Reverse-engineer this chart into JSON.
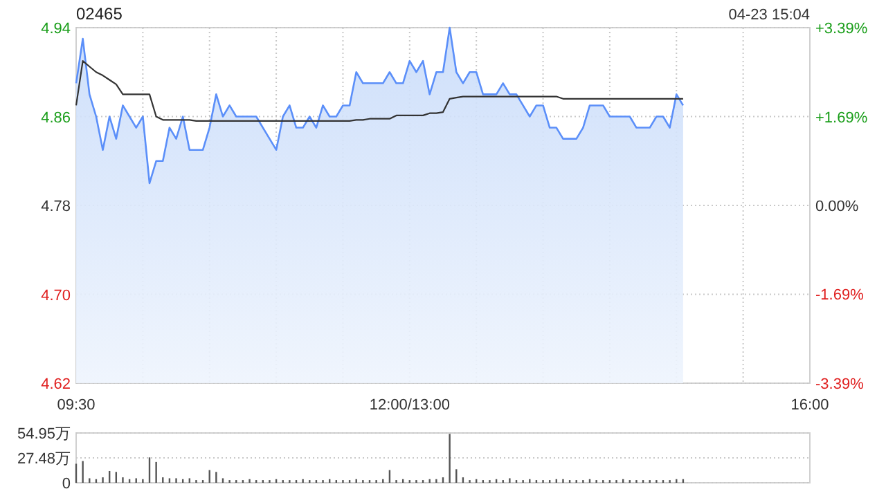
{
  "chart_data": [
    {
      "type": "area",
      "title": "02465",
      "annotations": [
        "04-23 15:04"
      ],
      "grid": true,
      "categories": [
        "09:30",
        null,
        null,
        null,
        null,
        null,
        null,
        null,
        null,
        null,
        null,
        null,
        null,
        null,
        null,
        null,
        null,
        null,
        null,
        null,
        null,
        null,
        null,
        null,
        null,
        null,
        null,
        null,
        null,
        null,
        null,
        null,
        null,
        null,
        null,
        null,
        null,
        null,
        null,
        null,
        null,
        null,
        null,
        null,
        null,
        null,
        null,
        null,
        null,
        null,
        "12:00/13:00",
        null,
        null,
        null,
        null,
        null,
        null,
        null,
        null,
        null,
        null,
        null,
        null,
        null,
        null,
        null,
        null,
        null,
        null,
        null,
        null,
        null,
        null,
        null,
        null,
        null,
        null,
        null,
        null,
        null,
        null,
        null,
        null,
        null,
        null,
        null,
        null,
        null,
        null,
        null,
        null,
        null,
        null,
        null,
        null,
        null,
        null,
        null,
        null,
        null,
        null,
        null,
        null,
        null,
        null,
        null,
        null,
        null,
        null,
        null,
        "16:00"
      ],
      "ylim": [
        4.62,
        4.94
      ],
      "yticks": [
        4.62,
        {
          "value": 4.7,
          "label": "4.70"
        },
        4.78,
        4.86,
        4.94
      ],
      "y2lim": [
        -3.39,
        3.39
      ],
      "y2ticks": [
        {
          "value": -3.39,
          "label": "-3.39%"
        },
        {
          "value": -1.69,
          "label": "-1.69%"
        },
        {
          "value": 0,
          "label": "0.00%"
        },
        {
          "value": 1.69,
          "label": "+1.69%"
        },
        {
          "value": 3.39,
          "label": "+3.39%"
        }
      ],
      "series": [
        {
          "color": "#5b8ff9",
          "values": [
            4.89,
            4.93,
            4.88,
            4.86,
            4.83,
            4.86,
            4.84,
            4.87,
            4.86,
            4.85,
            4.86,
            4.8,
            4.82,
            4.82,
            4.85,
            4.84,
            4.86,
            4.83,
            4.83,
            4.83,
            4.85,
            4.88,
            4.86,
            4.87,
            4.86,
            4.86,
            4.86,
            4.86,
            4.85,
            4.84,
            4.83,
            4.86,
            4.87,
            4.85,
            4.85,
            4.86,
            4.85,
            4.87,
            4.86,
            4.86,
            4.87,
            4.87,
            4.9,
            4.89,
            4.89,
            4.89,
            4.89,
            4.9,
            4.89,
            4.89,
            4.91,
            4.9,
            4.91,
            4.88,
            4.9,
            4.9,
            4.94,
            4.9,
            4.89,
            4.9,
            4.9,
            4.88,
            4.88,
            4.88,
            4.89,
            4.88,
            4.88,
            4.87,
            4.86,
            4.87,
            4.87,
            4.85,
            4.85,
            4.84,
            4.84,
            4.84,
            4.85,
            4.87,
            4.87,
            4.87,
            4.86,
            4.86,
            4.86,
            4.86,
            4.85,
            4.85,
            4.85,
            4.86,
            4.86,
            4.85,
            4.88,
            4.87,
            null,
            null,
            null,
            null,
            null,
            null,
            null,
            null,
            null,
            null,
            null,
            null,
            null,
            null,
            null,
            null,
            null,
            null,
            null
          ]
        },
        {
          "type": "line",
          "color": "#333333",
          "values": [
            4.87,
            4.91,
            4.905,
            4.9,
            4.897,
            4.893,
            4.889,
            4.88,
            4.88,
            4.88,
            4.88,
            4.88,
            4.86,
            4.857,
            4.857,
            4.857,
            4.857,
            4.857,
            4.856,
            4.856,
            4.856,
            4.856,
            4.856,
            4.856,
            4.856,
            4.856,
            4.856,
            4.856,
            4.856,
            4.856,
            4.856,
            4.856,
            4.856,
            4.856,
            4.856,
            4.856,
            4.856,
            4.856,
            4.856,
            4.856,
            4.856,
            4.856,
            4.857,
            4.857,
            4.858,
            4.858,
            4.858,
            4.858,
            4.861,
            4.861,
            4.861,
            4.861,
            4.861,
            4.863,
            4.863,
            4.864,
            4.876,
            4.877,
            4.878,
            4.878,
            4.878,
            4.878,
            4.878,
            4.878,
            4.878,
            4.878,
            4.878,
            4.878,
            4.878,
            4.878,
            4.878,
            4.878,
            4.878,
            4.876,
            4.876,
            4.876,
            4.876,
            4.876,
            4.876,
            4.876,
            4.876,
            4.876,
            4.876,
            4.876,
            4.876,
            4.876,
            4.876,
            4.876,
            4.876,
            4.876,
            4.876,
            4.876,
            null,
            null,
            null,
            null,
            null,
            null,
            null,
            null,
            null,
            null,
            null,
            null,
            null,
            null,
            null,
            null,
            null,
            null,
            null
          ]
        }
      ]
    },
    {
      "type": "bar",
      "color": "#555555",
      "grid": "y",
      "tick_labels": "y",
      "categories": [
        null,
        null,
        null,
        null,
        null,
        null,
        null,
        null,
        null,
        null,
        null,
        null,
        null,
        null,
        null,
        null,
        null,
        null,
        null,
        null,
        null,
        null,
        null,
        null,
        null,
        null,
        null,
        null,
        null,
        null,
        null,
        null,
        null,
        null,
        null,
        null,
        null,
        null,
        null,
        null,
        null,
        null,
        null,
        null,
        null,
        null,
        null,
        null,
        null,
        null,
        null,
        null,
        null,
        null,
        null,
        null,
        null,
        null,
        null,
        null,
        null,
        null,
        null,
        null,
        null,
        null,
        null,
        null,
        null,
        null,
        null,
        null,
        null,
        null,
        null,
        null,
        null,
        null,
        null,
        null,
        null,
        null,
        null,
        null,
        null,
        null,
        null,
        null,
        null,
        null,
        null,
        null,
        null,
        null,
        null,
        null,
        null,
        null,
        null,
        null,
        null,
        null,
        null,
        null,
        null,
        null,
        null,
        null,
        null,
        null,
        null
      ],
      "ylim": [
        0,
        54.95
      ],
      "yticks": [
        {
          "value": 0,
          "label": "0"
        },
        {
          "value": 27.48,
          "label": "27.48万"
        },
        {
          "value": 54.95,
          "label": "54.95万"
        }
      ],
      "values": [
        21,
        24,
        5,
        4,
        6,
        13,
        12,
        6,
        4,
        5,
        4,
        28,
        23,
        6,
        5,
        5,
        4,
        5,
        3,
        3,
        14,
        12,
        5,
        3,
        3,
        3,
        4,
        3,
        3,
        3,
        4,
        3,
        3,
        3,
        4,
        3,
        3,
        3,
        4,
        3,
        3,
        3,
        4,
        3,
        3,
        3,
        4,
        14,
        3,
        4,
        3,
        3,
        3,
        4,
        4,
        6,
        54,
        15,
        6,
        3,
        4,
        3,
        3,
        4,
        3,
        5,
        3,
        3,
        4,
        3,
        3,
        3,
        4,
        4,
        3,
        3,
        3,
        4,
        3,
        3,
        3,
        3,
        4,
        3,
        3,
        3,
        3,
        3,
        3,
        3,
        4,
        4,
        null,
        null,
        null,
        null,
        null,
        null,
        null,
        null,
        null,
        null,
        null,
        null,
        null,
        null,
        null,
        null,
        null,
        null,
        null
      ]
    }
  ]
}
